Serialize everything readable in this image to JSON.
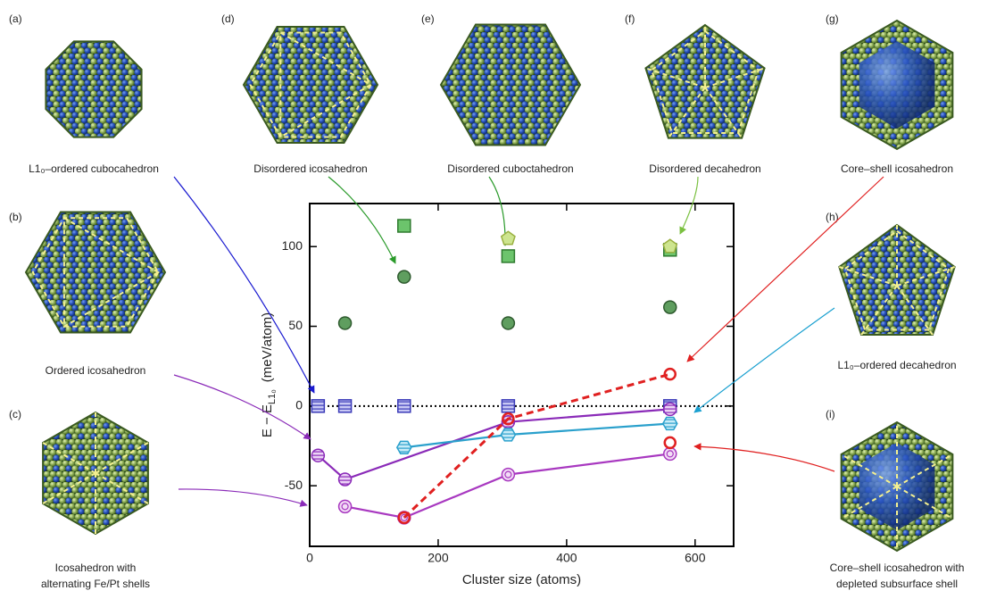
{
  "panels": [
    {
      "letter": "(a)",
      "caption": [
        "L1₀–ordered cubocahedron"
      ]
    },
    {
      "letter": "(b)",
      "caption": [
        "Ordered icosahedron"
      ]
    },
    {
      "letter": "(c)",
      "caption": [
        "Icosahedron with",
        "alternating Fe/Pt shells"
      ]
    },
    {
      "letter": "(d)",
      "caption": [
        "Disordered icosahedron"
      ]
    },
    {
      "letter": "(e)",
      "caption": [
        "Disordered cuboctahedron"
      ]
    },
    {
      "letter": "(f)",
      "caption": [
        "Disordered decahedron"
      ]
    },
    {
      "letter": "(g)",
      "caption": [
        "Core–shell icosahedron"
      ]
    },
    {
      "letter": "(h)",
      "caption": [
        "L1₀–ordered decahedron"
      ]
    },
    {
      "letter": "(i)",
      "caption": [
        "Core–shell icosahedron with",
        "depleted subsurface shell"
      ]
    }
  ],
  "chart_data": {
    "type": "scatter",
    "xlabel": "Cluster size  (atoms)",
    "ylabel": {
      "main": "E − E",
      "sub": "L1₀",
      "unit": "(meV/atom)"
    },
    "xlim": [
      0,
      660
    ],
    "ylim": [
      -88,
      127
    ],
    "xticks": [
      0,
      200,
      400,
      600
    ],
    "yticks": [
      -50,
      0,
      50,
      100
    ],
    "reference_line": 0,
    "series": [
      {
        "x": [
          55,
          147,
          309,
          561
        ],
        "values": [
          52,
          81,
          52,
          62
        ],
        "color": "#5f9e5f",
        "marker": "circle",
        "line": null
      },
      {
        "x": [
          147,
          309,
          561
        ],
        "values": [
          113,
          94,
          98
        ],
        "color": "#6cc46c",
        "marker": "square",
        "line": null
      },
      {
        "x": [
          309,
          561
        ],
        "values": [
          105,
          100
        ],
        "color": "#cde58f",
        "marker": "pentagon",
        "line": null
      },
      {
        "x": [
          13,
          55,
          147,
          309,
          561
        ],
        "values": [
          0,
          0,
          0,
          0,
          0
        ],
        "color": "#3a3ab8",
        "marker": "striped-square",
        "line": null
      },
      {
        "x": [
          13,
          55,
          309,
          561
        ],
        "values": [
          -31,
          -46,
          -10,
          -2
        ],
        "color": "#8a2ab8",
        "marker": "striped-circle",
        "line": "solid"
      },
      {
        "x": [
          147,
          309,
          561
        ],
        "values": [
          -26,
          -18,
          -11
        ],
        "color": "#2aa0cc",
        "marker": "striped-hexagon",
        "line": "solid"
      },
      {
        "x": [
          55,
          147,
          309,
          561
        ],
        "values": [
          -63,
          -70,
          -43,
          -30
        ],
        "color": "#a838c0",
        "marker": "double-circle",
        "line": "solid"
      },
      {
        "x": [
          147,
          309,
          561
        ],
        "values": [
          -70,
          -8,
          20
        ],
        "color": "#e02020",
        "marker": "open-circle",
        "line": "dashed"
      },
      {
        "x": [
          561
        ],
        "values": [
          -23
        ],
        "color": "#e02020",
        "marker": "open-circle",
        "line": null
      }
    ]
  }
}
